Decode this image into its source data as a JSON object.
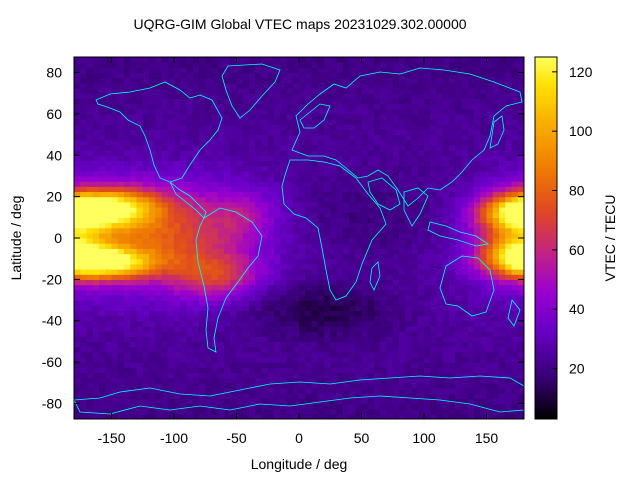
{
  "chart_data": {
    "type": "heatmap",
    "title": "UQRG-GIM Global VTEC maps 20231029.302.00000",
    "xlabel": "Longitude / deg",
    "ylabel": "Latitude / deg",
    "colorbar_label": "VTEC / TECU",
    "xlim": [
      -180,
      180
    ],
    "ylim": [
      -87.5,
      87.5
    ],
    "clim": [
      3,
      125
    ],
    "xticks": [
      -150,
      -100,
      -50,
      0,
      50,
      100,
      150
    ],
    "yticks": [
      -80,
      -60,
      -40,
      -20,
      0,
      20,
      40,
      60,
      80
    ],
    "cticks": [
      20,
      40,
      60,
      80,
      100,
      120
    ],
    "colormap": [
      "#000000",
      "#3a007a",
      "#6a00c8",
      "#9a00d0",
      "#c0208a",
      "#e04a20",
      "#f08000",
      "#f8b000",
      "#ffe000",
      "#ffff60"
    ],
    "coastline_color": "#00ffff",
    "grid_resolution": {
      "dlon": 5,
      "dlat": 2.5
    },
    "features": [
      {
        "lon": -155,
        "lat": 15,
        "value": 118,
        "sx": 28,
        "sy": 6
      },
      {
        "lon": -155,
        "lat": -12,
        "value": 115,
        "sx": 28,
        "sy": 5
      },
      {
        "lon": -120,
        "lat": 2,
        "value": 85,
        "sx": 55,
        "sy": 16
      },
      {
        "lon": -65,
        "lat": -18,
        "value": 70,
        "sx": 25,
        "sy": 8
      },
      {
        "lon": -40,
        "lat": 12,
        "value": 55,
        "sx": 20,
        "sy": 8
      },
      {
        "lon": 170,
        "lat": 12,
        "value": 100,
        "sx": 25,
        "sy": 6
      },
      {
        "lon": 175,
        "lat": -8,
        "value": 95,
        "sx": 22,
        "sy": 6
      },
      {
        "lon": 175,
        "lat": 2,
        "value": 70,
        "sx": 22,
        "sy": 14
      },
      {
        "lon": 60,
        "lat": 10,
        "value": 18,
        "sx": 60,
        "sy": 20
      },
      {
        "lon": 20,
        "lat": -35,
        "value": 10,
        "sx": 40,
        "sy": 10
      }
    ],
    "background_level": 30
  }
}
